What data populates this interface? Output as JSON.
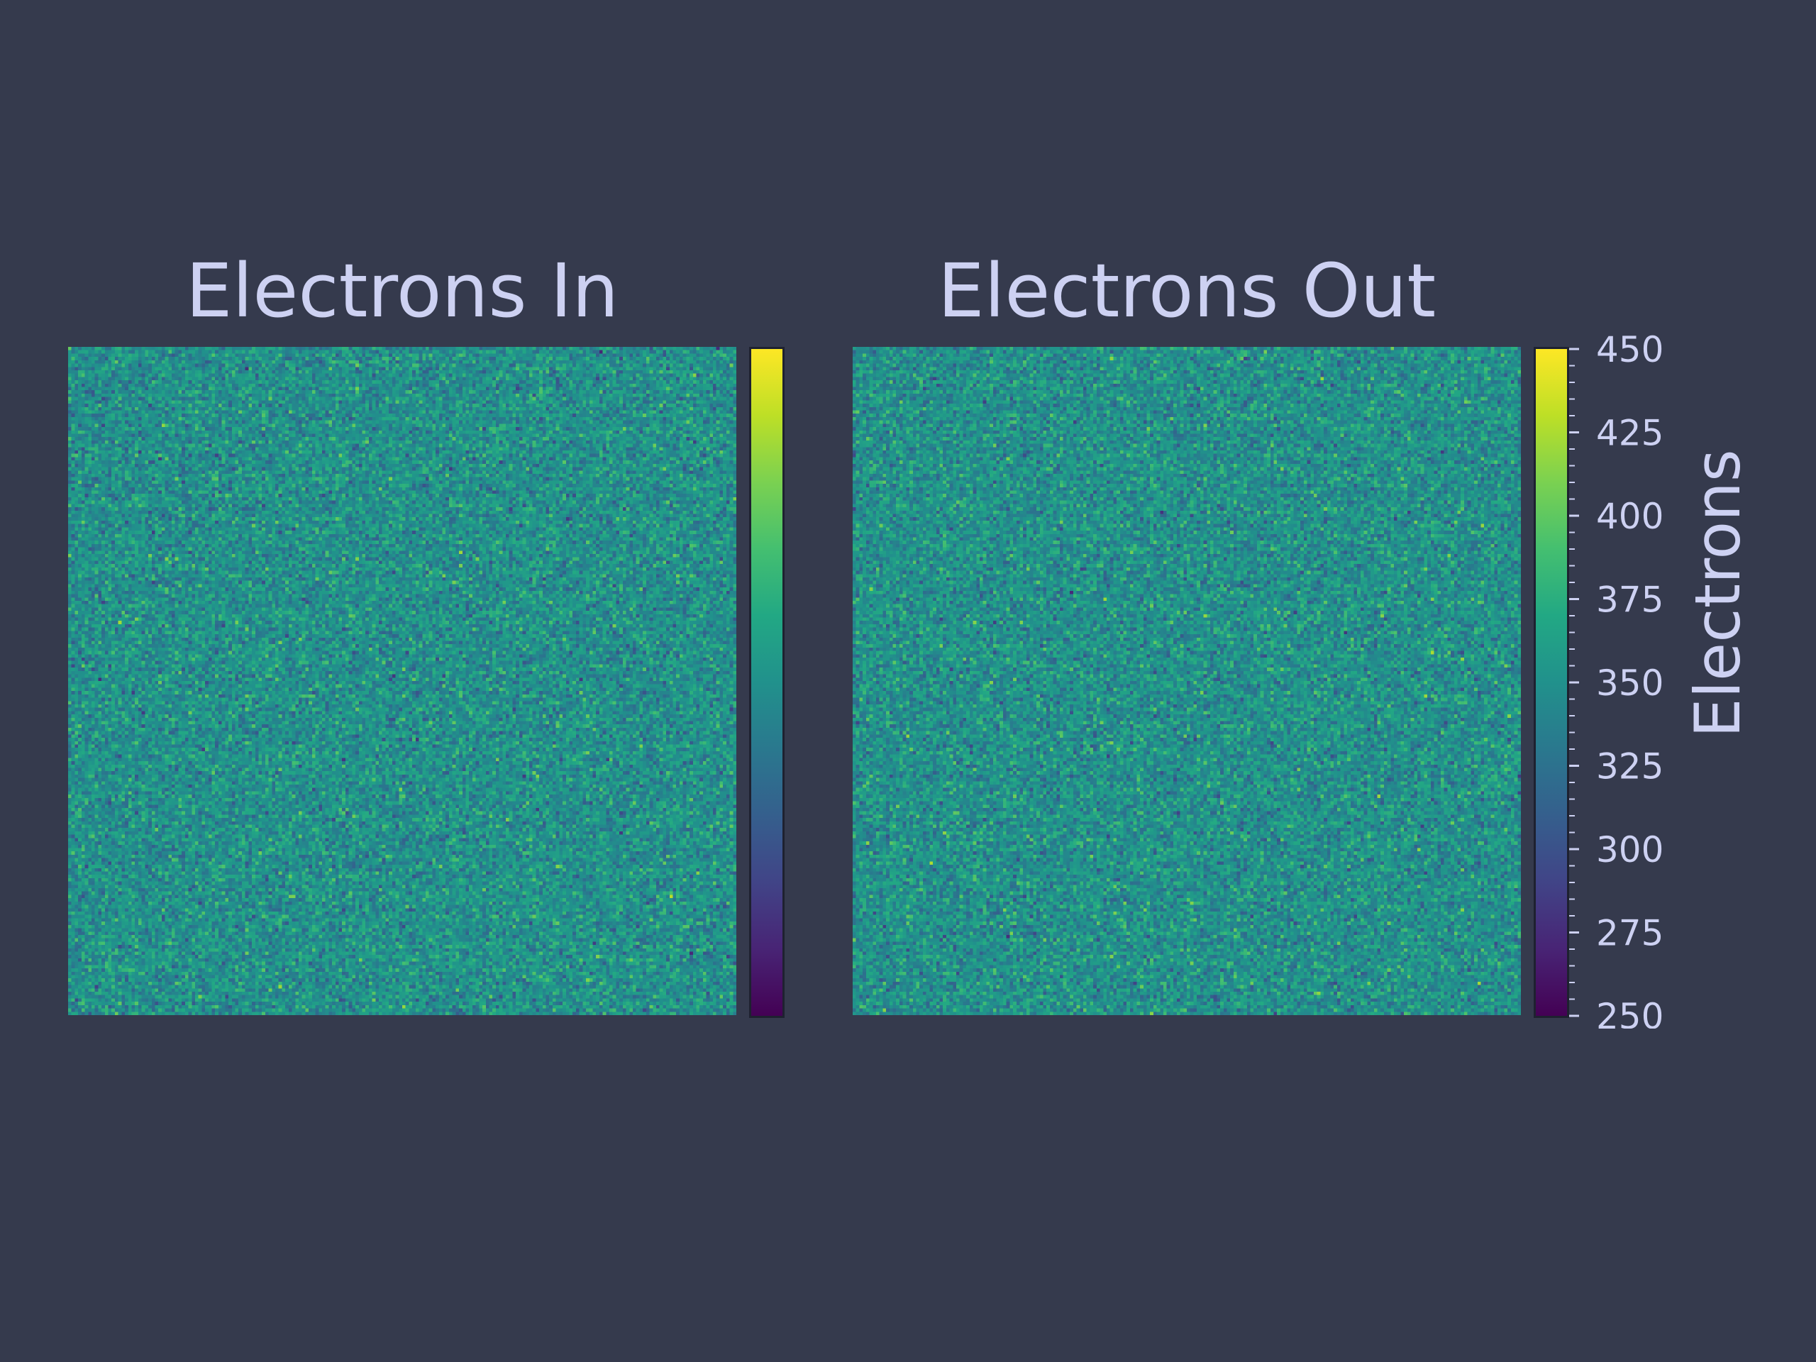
{
  "chart_data": [
    {
      "type": "heatmap",
      "title": "Electrons In",
      "colormap": "viridis",
      "clim": [
        250,
        450
      ],
      "typical_value": 350,
      "xlabel": "",
      "ylabel": "",
      "axes_visible": false,
      "grid": false
    },
    {
      "type": "heatmap",
      "title": "Electrons Out",
      "colormap": "viridis",
      "clim": [
        250,
        450
      ],
      "typical_value": 350,
      "xlabel": "",
      "ylabel": "",
      "axes_visible": false,
      "grid": false
    }
  ],
  "colorbar": {
    "label": "Electrons",
    "ticks": [
      "250",
      "275",
      "300",
      "325",
      "350",
      "375",
      "400",
      "425",
      "450"
    ],
    "min": 250,
    "max": 450,
    "minor_step": 5
  },
  "colors": {
    "background": "#353a4d",
    "text": "#cdd1f2",
    "colorbar_border": "#1e2130"
  }
}
